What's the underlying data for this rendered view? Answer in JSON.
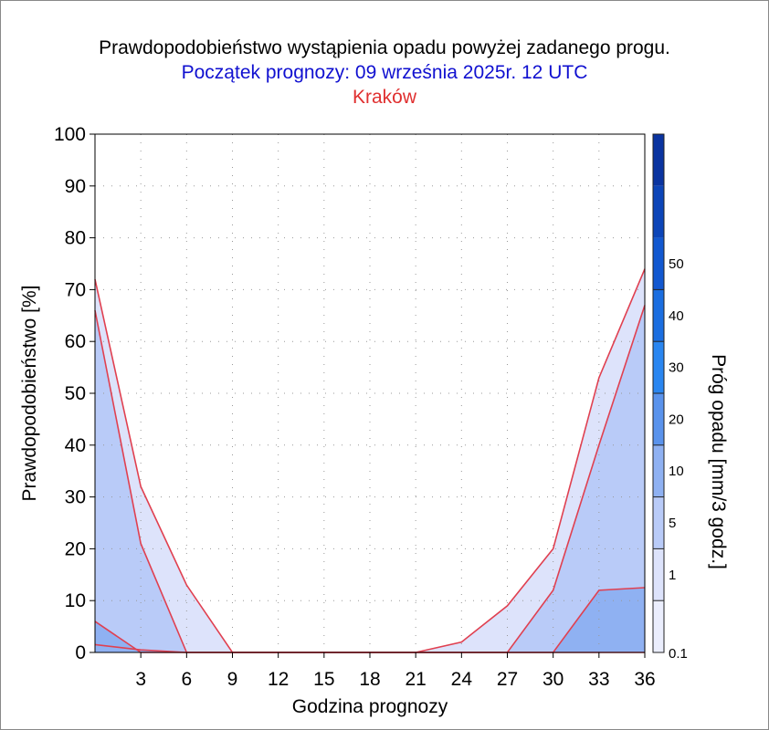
{
  "titles": {
    "line1": "Prawdopodobieństwo wystąpienia opadu powyżej zadanego progu.",
    "line2": "Początek prognozy: 09 września 2025r. 12 UTC",
    "line3": "Kraków"
  },
  "colors": {
    "title1": "#000000",
    "title2": "#1010d0",
    "title3": "#e03030",
    "line": "#e04050",
    "fills": [
      "#dde3fb",
      "#b9cbf8",
      "#8fb1f2"
    ],
    "colorbar": [
      "#ebeefd",
      "#dde3fb",
      "#b9cbf8",
      "#8fb1f2",
      "#5a93ec",
      "#2a86f0",
      "#1b6ee0",
      "#1258d0",
      "#0c45b8",
      "#0a34a0"
    ]
  },
  "chart_data": {
    "type": "area",
    "xlabel": "Godzina prognozy",
    "ylabel": "Prawdopodobieństwo [%]",
    "xlim": [
      0,
      36
    ],
    "ylim": [
      0,
      100
    ],
    "x": [
      0,
      3,
      6,
      9,
      12,
      15,
      18,
      21,
      24,
      27,
      30,
      33,
      36
    ],
    "xticks": [
      3,
      6,
      9,
      12,
      15,
      18,
      21,
      24,
      27,
      30,
      33,
      36
    ],
    "yticks": [
      0,
      10,
      20,
      30,
      40,
      50,
      60,
      70,
      80,
      90,
      100
    ],
    "grid": true,
    "series": [
      {
        "threshold": "0.1",
        "values": [
          72,
          32,
          13,
          0,
          0,
          0,
          0,
          0,
          2,
          9,
          20,
          53,
          74
        ]
      },
      {
        "threshold": "1",
        "values": [
          66,
          21,
          0,
          0,
          0,
          0,
          0,
          0,
          0,
          0,
          12,
          40,
          67
        ]
      },
      {
        "threshold": "5",
        "values": [
          6,
          0,
          0,
          0,
          0,
          0,
          0,
          0,
          0,
          0,
          0,
          12,
          12.5
        ]
      },
      {
        "threshold": "10",
        "values": [
          1.5,
          0.5,
          0,
          0,
          0,
          0,
          0,
          0,
          0,
          0,
          0,
          0,
          0
        ]
      }
    ],
    "colorbar": {
      "label": "Próg opadu [mm/3 godz.]",
      "ticks": [
        "0.1",
        "1",
        "5",
        "10",
        "20",
        "30",
        "40",
        "50"
      ]
    }
  }
}
